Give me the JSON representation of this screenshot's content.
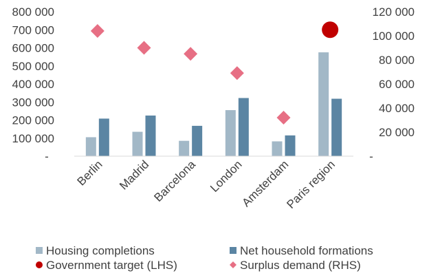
{
  "chart_data": {
    "type": "bar",
    "categories": [
      "Berlin",
      "Madrid",
      "Barcelona",
      "London",
      "Amsterdam",
      "Paris region"
    ],
    "series": [
      {
        "name": "Housing completions",
        "kind": "bar",
        "axis": "left",
        "color": "#a2b8c7",
        "values": [
          105000,
          135000,
          85000,
          255000,
          82000,
          575000
        ]
      },
      {
        "name": "Net household formations",
        "kind": "bar",
        "axis": "left",
        "color": "#5b85a3",
        "values": [
          208000,
          225000,
          168000,
          322000,
          115000,
          318000
        ]
      },
      {
        "name": "Government target (LHS)",
        "kind": "point",
        "marker": "circle",
        "axis": "left",
        "color": "#c00000",
        "values": [
          null,
          null,
          null,
          null,
          null,
          700000
        ]
      },
      {
        "name": "Surplus demand (RHS)",
        "kind": "point",
        "marker": "diamond",
        "axis": "right",
        "color": "#e76f84",
        "values": [
          104000,
          90000,
          85000,
          69000,
          32000,
          null
        ]
      }
    ],
    "y_left": {
      "ylim": [
        0,
        800000
      ],
      "ticks": [
        {
          "value": 0,
          "label": "-"
        },
        {
          "value": 100000,
          "label": "100 000"
        },
        {
          "value": 200000,
          "label": "200 000"
        },
        {
          "value": 300000,
          "label": "300 000"
        },
        {
          "value": 400000,
          "label": "400 000"
        },
        {
          "value": 500000,
          "label": "500 000"
        },
        {
          "value": 600000,
          "label": "600 000"
        },
        {
          "value": 700000,
          "label": "700 000"
        },
        {
          "value": 800000,
          "label": "800 000"
        }
      ]
    },
    "y_right": {
      "ylim": [
        0,
        120000
      ],
      "ticks": [
        {
          "value": 0,
          "label": "-"
        },
        {
          "value": 20000,
          "label": "20 000"
        },
        {
          "value": 40000,
          "label": "40 000"
        },
        {
          "value": 60000,
          "label": "60 000"
        },
        {
          "value": 80000,
          "label": "80 000"
        },
        {
          "value": 100000,
          "label": "100 000"
        },
        {
          "value": 120000,
          "label": "120 000"
        }
      ]
    },
    "grid": false,
    "legend": {
      "placement": "bottom",
      "entries": [
        "Housing completions",
        "Net household formations",
        "Government target (LHS)",
        "Surplus demand (RHS)"
      ]
    }
  }
}
